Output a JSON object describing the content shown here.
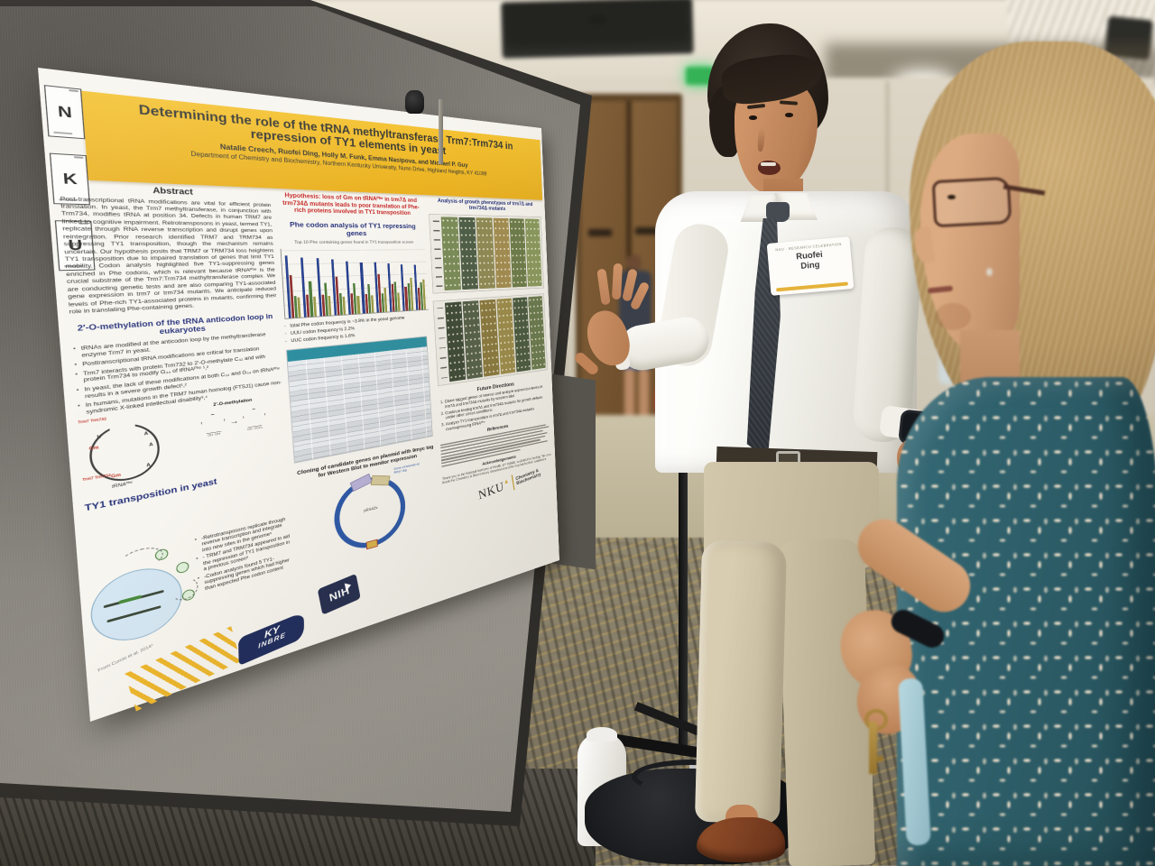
{
  "poster": {
    "element_tiles": [
      {
        "symbol": "N"
      },
      {
        "symbol": "K"
      },
      {
        "symbol": "U"
      }
    ],
    "banner": {
      "title": "Determining the role of the tRNA methyltransferase Trm7:Trm734 in repression of TY1 elements in yeast",
      "authors": "Natalie Creech, Ruofei Ding, Holly M. Funk, Emma Nasipova, and Michael P. Guy",
      "affiliation": "Department of Chemistry and Biochemistry, Northern Kentucky University, Nunn Drive, Highland Heights, KY 41099"
    },
    "col1": {
      "abstract_heading": "Abstract",
      "abstract_text": "Post-transcriptional tRNA modifications are vital for efficient protein translation. In yeast, the Trm7 methyltransferase, in conjunction with Trm734, modifies tRNA at position 34. Defects in human TRM7 are linked to cognitive impairment. Retrotransposons in yeast, termed TY1, replicate through RNA reverse transcription and disrupt genes upon reintegration. Prior research identified TRM7 and TRM734 as suppressing TY1 transposition, though the mechanism remains uncertain. Our hypothesis posits that TRM7 or TRM734 loss heightens TY1 transposition due to impaired translation of genes that limit TY1 mobility. Codon analysis highlighted five TY1-suppressing genes enriched in Phe codons, which is relevant because tRNAᴾʰᵉ is the crucial substrate of the Trm7:Trm734 methyltransferase complex. We are conducting genetic tests and are also comparing TY1-associated gene expression in trm7 or trm734 mutants. We anticipate reduced levels of Phe-rich TY1-associated proteins in mutants, confirming their role in translating Phe-containing genes.",
      "methylation_heading": "2′-O-methylation of the tRNA anticodon loop in eukaryotes",
      "methylation_bullets": [
        "tRNAs are modified at the anticodon loop by the methyltransferase enzyme Trm7 in yeast.",
        "Posttranscriptional tRNA modifications are critical for translation",
        "Trm7 interacts with protein Trm732 to 2′-O-methylate C₃₂ and with protein Trm734 to modify G₃₄ of tRNAᴾʰᵉ ¹,²",
        "In yeast, the lack of these modifications at both C₃₂ and G₃₄ on tRNAᴾʰᵉ results in a severe growth defect¹,²",
        "In humans, mutations in the TRM7 human homolog (FTSJ1) cause non-syndromic X-linked intellectual disability³,⁴"
      ],
      "methylation_diagram_label": "2′-O-methylation",
      "trna_label": "tRNAᴾʰᵉ",
      "loop_letters": {
        "cm": "Cm",
        "gm": "Gm",
        "enzyme1": "Trm7 Trm732",
        "enzyme2": "Trm7 Trm734"
      },
      "ty1_heading": "TY1 transposition in yeast",
      "ty1_bullets": [
        "-Retrotransposons replicate through reverse transcription and integrate into new sites in the genome⁵",
        "- TRM7 and TRM734 appeared to aid the repression of TY1 transposition in a previous screen⁶",
        "-Codon analysis found 5 TY1-suppressing genes which had higher than expected Phe codon content"
      ],
      "cycle_caption": "From Curcio et al. 2014⁵",
      "kyinbre_line1": "KY",
      "kyinbre_line2": "INBRE",
      "nih_label": "NIH"
    },
    "col2": {
      "hypothesis": "Hypothesis: loss of Gm on tRNAᴾʰᵉ in trm7Δ and trm734Δ mutants leads to poor translation of Phe-rich proteins involved in TY1 transposition",
      "chart_heading": "Phe codon analysis of TY1 repressing genes",
      "chart_bullets": [
        "total Phe codon frequency is ~3.8% in the yeast genome",
        "UUU codon frequency is 2.2%",
        "UUC codon frequency is 1.6%"
      ],
      "table_header_color": "#2e8fa0",
      "cloning_heading": "Cloning of candidate genes on plasmid with 9myc tag for Western Blot to monitor expression",
      "plasmid_labels": {
        "insert": "Gene of interest w/ 9myc tag",
        "backbone": "pRS42x"
      }
    },
    "col3": {
      "growth_heading": "Analysis of growth phenotypes of trm7Δ and trm734Δ mutants",
      "spot_panels": [
        {
          "colors": [
            "#7a8c58",
            "#4e5e47",
            "#8f8a54",
            "#a38d50",
            "#6d7c4a",
            "#8a9a5e"
          ]
        },
        {
          "colors": [
            "#3e4a37",
            "#556049",
            "#8a7a3e",
            "#9c8c4a",
            "#49593f",
            "#6a7a4e"
          ]
        }
      ],
      "future_heading": "Future Directions",
      "future_items": [
        "Clone tagged genes of interest and analyze expression levels in trm7Δ and trm734Δ mutants by western blot",
        "Continue testing trm7Δ and trm734Δ mutants for growth defects under other stress conditions",
        "Analyze TY1 transposition in trm7Δ and trm734Δ mutants overexpressing tRNAᴾʰᵉ"
      ],
      "references_heading": "References",
      "acknowledgements_heading": "Acknowledgements",
      "acknowledgements_text": "Thank you to the National Institutes of Health, KY INBRE, and NKU for funding. We also thank the Chemistry & Biochemistry department and the Guy lab for their assistance.",
      "nku_logo": {
        "wordmark": "NKU",
        "department_line1": "Chemistry &",
        "department_line2": "Biochemistry"
      }
    }
  },
  "badge": {
    "name_line1": "Ruofei",
    "name_line2": "Ding"
  },
  "chart_data": {
    "type": "bar",
    "title": "Top 10 Phe containing genes found in TY1 transposition screen",
    "categories": [
      "",
      "",
      "",
      "",
      "",
      "",
      "",
      "",
      "",
      ""
    ],
    "series": [
      {
        "name": "total Phe",
        "color": "#27418e",
        "values": [
          9.0,
          8.7,
          8.6,
          8.4,
          8.0,
          7.8,
          7.8,
          7.6,
          7.4,
          7.3
        ]
      },
      {
        "name": "UUU",
        "color": "#8e3030",
        "values": [
          6.2,
          3.3,
          3.1,
          5.8,
          3.1,
          2.9,
          6.0,
          4.3,
          3.8,
          3.6
        ]
      },
      {
        "name": "UUC",
        "color": "#4f7d3c",
        "values": [
          3.1,
          5.2,
          4.9,
          3.3,
          4.7,
          4.5,
          2.9,
          4.7,
          4.3,
          4.5
        ]
      },
      {
        "name": "",
        "color": "#9a9a46",
        "values": [
          2.9,
          2.9,
          2.9,
          2.7,
          2.7,
          2.7,
          3.8,
          2.9,
          5.2,
          4.9
        ]
      }
    ],
    "ylim": [
      0,
      10
    ],
    "ylabel": "",
    "xlabel": "",
    "grid": true,
    "legend": "none"
  }
}
